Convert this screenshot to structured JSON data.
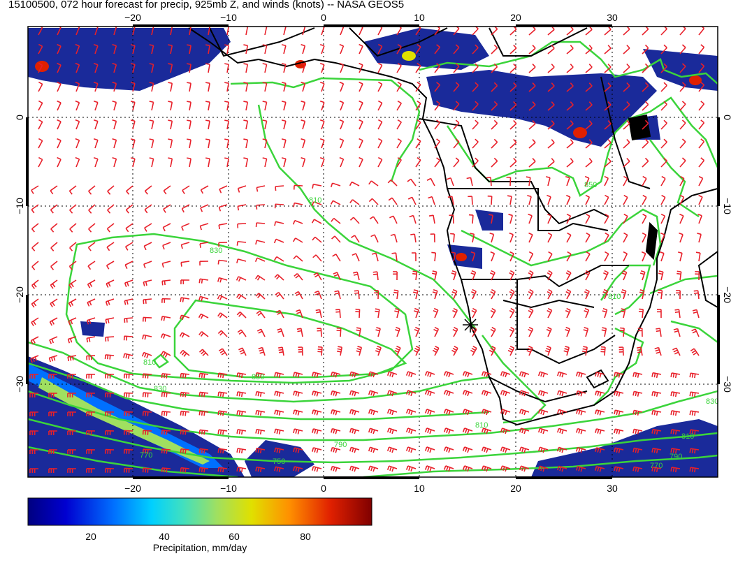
{
  "title": "15100500, 072 hour forecast for precip, 925mb Z, and winds (knots) -- NASA GEOS5",
  "map": {
    "lon_ticks": [
      "−20",
      "−10",
      "0",
      "10",
      "20",
      "30"
    ],
    "lat_ticks": [
      "0",
      "−10",
      "−20",
      "−30"
    ],
    "contour_labels": [
      "810",
      "830",
      "850",
      "810",
      "830",
      "810",
      "790",
      "770",
      "750",
      "830",
      "810",
      "790",
      "770",
      "850",
      "810"
    ],
    "colors": {
      "wind_barbs": "#e8202a",
      "contours": "#3bd43b",
      "coastlines": "#000000",
      "precip_low": "#1a2a9a"
    },
    "marker_icon": "cross-star-marker"
  },
  "colorbar": {
    "ticks": [
      "20",
      "40",
      "60",
      "80"
    ],
    "label": "Precipitation, mm/day",
    "colors": [
      "#000080",
      "#0000d0",
      "#0070ff",
      "#00d0ff",
      "#40e0c0",
      "#a0e060",
      "#e0e000",
      "#ff9000",
      "#e02000",
      "#800000"
    ]
  }
}
